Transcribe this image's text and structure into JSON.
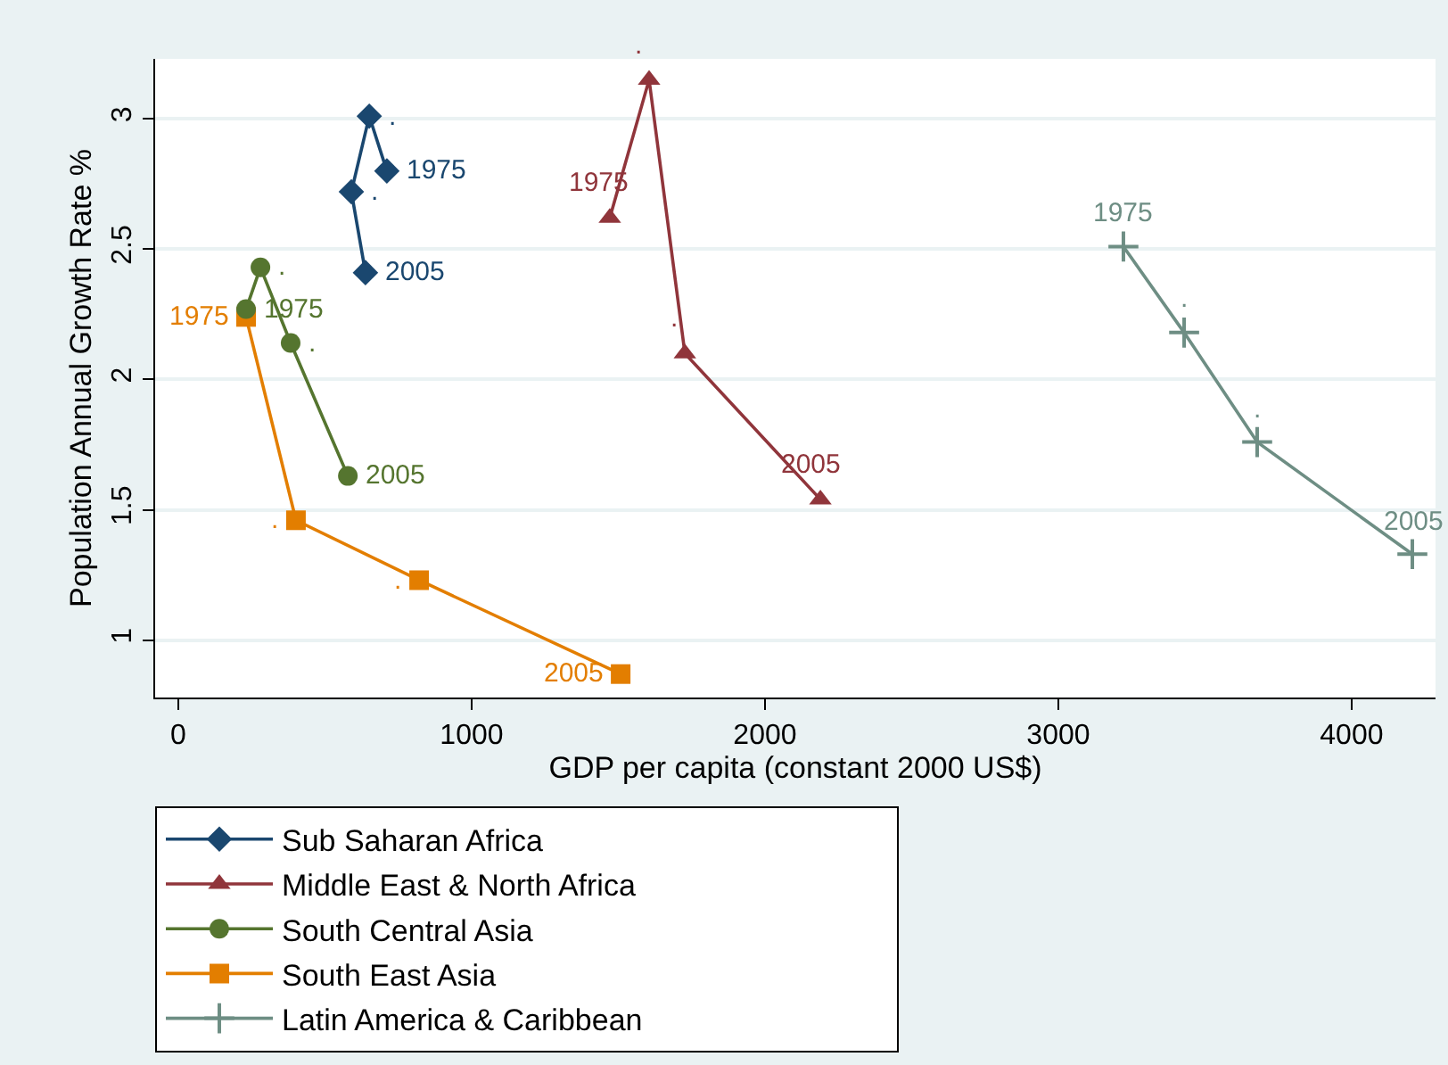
{
  "chart_data": {
    "type": "line",
    "xlabel": "GDP per capita (constant 2000 US$)",
    "ylabel": "Population Annual Growth Rate %",
    "xlim": [
      -79,
      4286
    ],
    "xticks": [
      0,
      1000,
      2000,
      3000,
      4000
    ],
    "ylim": [
      0.78,
      3.23
    ],
    "yticks": [
      1,
      1.5,
      2,
      2.5,
      3
    ],
    "grid": "y",
    "legend": "bottom",
    "series": [
      {
        "name": "Sub Saharan Africa",
        "color": "#1a476f",
        "marker": "diamond",
        "x": [
          711,
          651,
          590,
          638
        ],
        "values": [
          2.8,
          3.01,
          2.72,
          2.41
        ]
      },
      {
        "name": "Middle East & North Africa",
        "color": "#90353b",
        "marker": "triangle",
        "x": [
          1471,
          1605,
          1727,
          2189
        ],
        "values": [
          2.62,
          3.15,
          2.1,
          1.54
        ]
      },
      {
        "name": "South Central Asia",
        "color": "#55752f",
        "marker": "circle",
        "x": [
          231,
          280,
          383,
          578
        ],
        "values": [
          2.27,
          2.43,
          2.14,
          1.63
        ]
      },
      {
        "name": "South East Asia",
        "color": "#e37e00",
        "marker": "square",
        "x": [
          231,
          401,
          821,
          1508
        ],
        "values": [
          2.24,
          1.46,
          1.23,
          0.87
        ]
      },
      {
        "name": "Latin America & Caribbean",
        "color": "#6e8e84",
        "marker": "cross",
        "x": [
          3222,
          3429,
          3678,
          4207
        ],
        "values": [
          2.51,
          2.18,
          1.76,
          1.33
        ]
      }
    ],
    "annotations": [
      {
        "text": "1975",
        "x": 711,
        "y": 2.8
      },
      {
        "text": ".",
        "x": 651,
        "y": 3.01
      },
      {
        "text": ".",
        "x": 590,
        "y": 2.72
      },
      {
        "text": "2005",
        "x": 638,
        "y": 2.41
      },
      {
        "text": "1975",
        "x": 1471,
        "y": 2.62
      },
      {
        "text": ".",
        "x": 1605,
        "y": 3.15
      },
      {
        "text": ".",
        "x": 1727,
        "y": 2.1
      },
      {
        "text": "2005",
        "x": 2189,
        "y": 1.54
      },
      {
        "text": "1975",
        "x": 231,
        "y": 2.27
      },
      {
        "text": ".",
        "x": 280,
        "y": 2.43
      },
      {
        "text": ".",
        "x": 383,
        "y": 2.14
      },
      {
        "text": "2005",
        "x": 578,
        "y": 1.63
      },
      {
        "text": "1975",
        "x": 231,
        "y": 2.24
      },
      {
        "text": ".",
        "x": 401,
        "y": 1.46
      },
      {
        "text": ".",
        "x": 821,
        "y": 1.23
      },
      {
        "text": "2005",
        "x": 1508,
        "y": 0.87
      },
      {
        "text": "1975",
        "x": 3222,
        "y": 2.51
      },
      {
        "text": ".",
        "x": 3429,
        "y": 2.18
      },
      {
        "text": ".",
        "x": 3678,
        "y": 1.76
      },
      {
        "text": "2005",
        "x": 4207,
        "y": 1.33
      }
    ]
  }
}
